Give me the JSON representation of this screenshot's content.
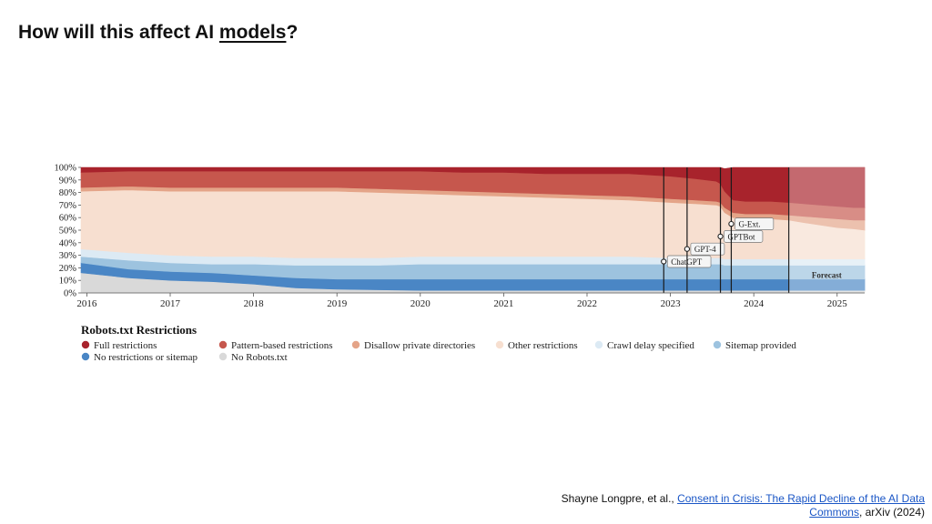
{
  "slide": {
    "title_pre": "How will this affect AI ",
    "title_link": "models",
    "title_post": "?"
  },
  "citation": {
    "authors": "Shayne Longpre, et al., ",
    "link_text": "Consent in Crisis: The Rapid Decline of the AI Data Commons",
    "suffix": ", arXiv (2024)"
  },
  "chart_data": {
    "type": "area",
    "stacked": true,
    "title": "Robots.txt Restrictions",
    "x_range": [
      2015.93,
      2025.33
    ],
    "ylim": [
      0,
      100
    ],
    "y_ticks": [
      "0%",
      "10%",
      "20%",
      "30%",
      "40%",
      "50%",
      "60%",
      "70%",
      "80%",
      "90%",
      "100%"
    ],
    "x_ticks": [
      2016,
      2017,
      2018,
      2019,
      2020,
      2021,
      2022,
      2023,
      2024,
      2025
    ],
    "x_tick_labels": [
      "2016",
      "2017",
      "2018",
      "2019",
      "2020",
      "2021",
      "2022",
      "2023",
      "2024",
      "2025"
    ],
    "x": [
      2015.93,
      2016.5,
      2017.0,
      2017.5,
      2018.0,
      2018.5,
      2019.0,
      2019.5,
      2020.0,
      2020.5,
      2021.0,
      2021.5,
      2022.0,
      2022.5,
      2023.0,
      2023.3,
      2023.55,
      2023.6,
      2023.65,
      2023.75,
      2023.9,
      2024.0,
      2024.2,
      2024.42,
      2024.6,
      2024.8,
      2025.0,
      2025.2,
      2025.33
    ],
    "series": [
      {
        "name": "No Robots.txt",
        "color": "#d9d9d9",
        "values": [
          16,
          12,
          10,
          9,
          7,
          4,
          3,
          2.5,
          2,
          2,
          2,
          2,
          2,
          2,
          2,
          2,
          2,
          2,
          2,
          2,
          2,
          2,
          2,
          2,
          2,
          2,
          2,
          2,
          2
        ]
      },
      {
        "name": "No restrictions or sitemap",
        "color": "#4a86c5",
        "values": [
          8,
          7,
          7,
          7,
          7,
          8,
          8,
          8.5,
          9,
          9,
          9,
          9,
          9,
          9,
          9,
          9,
          9,
          9,
          9,
          9,
          9,
          9,
          9,
          9,
          9,
          9,
          9,
          9,
          9
        ]
      },
      {
        "name": "Sitemap provided",
        "color": "#9dc3df",
        "values": [
          5,
          7,
          7,
          7,
          9,
          10,
          11,
          11,
          12,
          12,
          12,
          12,
          12,
          12,
          12,
          12,
          12,
          12,
          11,
          11,
          11,
          11,
          11,
          11,
          11,
          11,
          11,
          11,
          11
        ]
      },
      {
        "name": "Crawl delay specified",
        "color": "#dceaf4",
        "values": [
          6,
          6,
          6,
          6,
          6,
          6,
          6,
          6,
          6,
          6,
          6,
          6,
          6,
          6,
          5,
          5,
          5,
          5,
          5,
          5,
          5,
          5,
          5,
          5,
          5,
          5,
          5,
          5,
          5
        ]
      },
      {
        "name": "Other restrictions",
        "color": "#f7dfd0",
        "values": [
          46,
          50,
          51,
          52,
          52,
          53,
          53,
          52,
          50,
          49,
          48,
          47,
          46,
          45,
          44,
          43,
          42,
          41,
          37,
          33,
          32,
          32,
          32,
          31,
          29,
          27,
          25,
          24,
          23
        ]
      },
      {
        "name": "Disallow private directories",
        "color": "#e4a488",
        "values": [
          3,
          3,
          3,
          3,
          3,
          3,
          3,
          3,
          3,
          3,
          3,
          3,
          3,
          3,
          3,
          3,
          3,
          3,
          4,
          4,
          4,
          4,
          4,
          4,
          5,
          6,
          7,
          7,
          8
        ]
      },
      {
        "name": "Pattern-based restrictions",
        "color": "#c6574d",
        "values": [
          12,
          12,
          13,
          13,
          13,
          13,
          13,
          14,
          15,
          15,
          16,
          16,
          17,
          18,
          18,
          17,
          16,
          15,
          13,
          10,
          10,
          10,
          10,
          10,
          10,
          10,
          10,
          10,
          10
        ]
      },
      {
        "name": "Full restrictions",
        "color": "#a8232c",
        "values": [
          4,
          3,
          3,
          3,
          3,
          3,
          3,
          3,
          3,
          4,
          4,
          5,
          5,
          5,
          7,
          9,
          11,
          13,
          18,
          26,
          27,
          27,
          27,
          28,
          29,
          30,
          31,
          32,
          32
        ]
      }
    ],
    "forecast": {
      "start": 2024.42,
      "label": "Forecast"
    },
    "events": [
      {
        "label": "ChatGPT",
        "x": 2022.92,
        "y": 25
      },
      {
        "label": "GPT-4",
        "x": 2023.2,
        "y": 35
      },
      {
        "label": "GPTBot",
        "x": 2023.6,
        "y": 45
      },
      {
        "label": "G-Ext.",
        "x": 2023.73,
        "y": 55
      }
    ],
    "legend": {
      "title": "Robots.txt Restrictions",
      "position": "bottom",
      "items": [
        {
          "label": "Full restrictions",
          "color": "#a8232c"
        },
        {
          "label": "Pattern-based restrictions",
          "color": "#c6574d"
        },
        {
          "label": "Disallow private directories",
          "color": "#e4a488"
        },
        {
          "label": "Other restrictions",
          "color": "#f7dfd0"
        },
        {
          "label": "Crawl delay specified",
          "color": "#dceaf4"
        },
        {
          "label": "Sitemap provided",
          "color": "#9dc3df"
        },
        {
          "label": "No restrictions or sitemap",
          "color": "#4a86c5"
        },
        {
          "label": "No Robots.txt",
          "color": "#d9d9d9"
        }
      ]
    }
  }
}
